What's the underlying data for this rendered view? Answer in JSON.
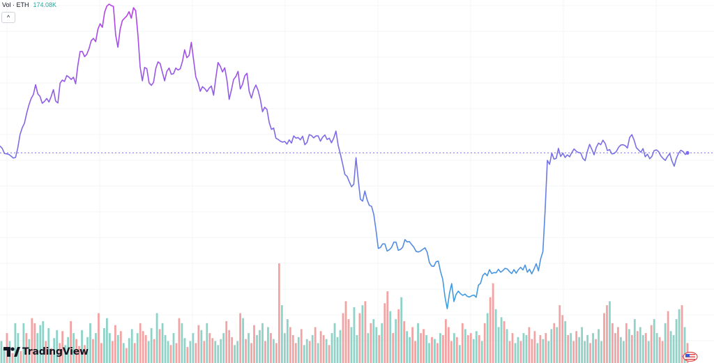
{
  "legend": {
    "label": "Vol · ETH",
    "value": "174.08K",
    "value_color": "#26a69a"
  },
  "collapse_button": {
    "icon": "chevron-up-icon",
    "glyph": "⌃"
  },
  "logo": {
    "text": "TradingView",
    "icon": "tradingview-logo-icon"
  },
  "flag": {
    "icon": "us-flag-icon"
  },
  "colors": {
    "price_line_top": "#b63fe8",
    "price_line_bottom": "#30a6e0",
    "volume_up": "#8fd3c8",
    "volume_down": "#f2a3a3",
    "current_price_line": "#7b6cf0",
    "grid": "#f3f4f6"
  },
  "chart_data": {
    "type": "line",
    "series": [
      {
        "values": [
          0.565,
          0.558,
          0.542,
          0.541,
          0.539,
          0.534,
          0.528,
          0.53,
          0.559,
          0.6,
          0.621,
          0.635,
          0.666,
          0.691,
          0.711,
          0.723,
          0.753,
          0.725,
          0.717,
          0.696,
          0.702,
          0.711,
          0.7,
          0.717,
          0.738,
          0.703,
          0.697,
          0.758,
          0.767,
          0.763,
          0.781,
          0.776,
          0.769,
          0.776,
          0.756,
          0.813,
          0.855,
          0.855,
          0.839,
          0.846,
          0.863,
          0.888,
          0.895,
          0.885,
          0.923,
          0.94,
          0.929,
          0.975,
          0.994,
          1.0,
          0.996,
          0.993,
          0.905,
          0.868,
          0.923,
          0.95,
          0.957,
          0.964,
          0.977,
          0.957,
          0.989,
          0.98,
          0.906,
          0.807,
          0.765,
          0.806,
          0.802,
          0.759,
          0.751,
          0.76,
          0.803,
          0.823,
          0.818,
          0.791,
          0.765,
          0.794,
          0.804,
          0.785,
          0.787,
          0.804,
          0.798,
          0.802,
          0.825,
          0.86,
          0.836,
          0.843,
          0.883,
          0.83,
          0.777,
          0.76,
          0.733,
          0.747,
          0.741,
          0.732,
          0.742,
          0.749,
          0.721,
          0.773,
          0.821,
          0.81,
          0.792,
          0.805,
          0.767,
          0.708,
          0.737,
          0.769,
          0.778,
          0.794,
          0.74,
          0.754,
          0.78,
          0.788,
          0.732,
          0.712,
          0.737,
          0.752,
          0.736,
          0.709,
          0.67,
          0.684,
          0.677,
          0.637,
          0.616,
          0.62,
          0.589,
          0.585,
          0.58,
          0.577,
          0.579,
          0.571,
          0.584,
          0.574,
          0.596,
          0.589,
          0.591,
          0.584,
          0.595,
          0.569,
          0.576,
          0.6,
          0.597,
          0.59,
          0.596,
          0.596,
          0.58,
          0.592,
          0.599,
          0.585,
          0.589,
          0.575,
          0.589,
          0.611,
          0.567,
          0.54,
          0.51,
          0.478,
          0.472,
          0.455,
          0.44,
          0.448,
          0.529,
          0.463,
          0.402,
          0.396,
          0.427,
          0.4,
          0.383,
          0.38,
          0.355,
          0.306,
          0.251,
          0.254,
          0.265,
          0.265,
          0.243,
          0.247,
          0.254,
          0.27,
          0.27,
          0.245,
          0.248,
          0.255,
          0.278,
          0.271,
          0.272,
          0.263,
          0.255,
          0.242,
          0.24,
          0.243,
          0.248,
          0.253,
          0.239,
          0.207,
          0.197,
          0.196,
          0.21,
          0.212,
          0.18,
          0.156,
          0.102,
          0.066,
          0.113,
          0.143,
          0.088,
          0.11,
          0.12,
          0.112,
          0.107,
          0.111,
          0.104,
          0.102,
          0.106,
          0.108,
          0.101,
          0.138,
          0.144,
          0.168,
          0.175,
          0.167,
          0.186,
          0.174,
          0.177,
          0.176,
          0.187,
          0.178,
          0.183,
          0.19,
          0.188,
          0.18,
          0.174,
          0.186,
          0.175,
          0.186,
          0.193,
          0.185,
          0.2,
          0.178,
          0.187,
          0.173,
          0.187,
          0.204,
          0.182,
          0.219,
          0.241,
          0.368,
          0.521,
          0.509,
          0.543,
          0.525,
          0.527,
          0.558,
          0.533,
          0.543,
          0.53,
          0.538,
          0.532,
          0.545,
          0.556,
          0.549,
          0.545,
          0.544,
          0.527,
          0.52,
          0.549,
          0.57,
          0.555,
          0.538,
          0.561,
          0.574,
          0.569,
          0.583,
          0.573,
          0.551,
          0.554,
          0.541,
          0.542,
          0.548,
          0.561,
          0.568,
          0.569,
          0.566,
          0.559,
          0.591,
          0.6,
          0.583,
          0.56,
          0.553,
          0.546,
          0.557,
          0.532,
          0.54,
          0.526,
          0.533,
          0.551,
          0.553,
          0.548,
          0.535,
          0.527,
          0.521,
          0.533,
          0.542,
          0.519,
          0.503,
          0.527,
          0.543,
          0.552,
          0.548,
          0.539,
          0.544
        ],
        "color_top": "#b63fe8",
        "color_bottom": "#30a6e0"
      },
      {
        "type": "bar",
        "up": [
          1,
          1,
          0,
          1,
          0,
          1,
          1,
          0,
          1,
          0,
          1,
          0,
          0,
          1,
          1,
          1,
          0,
          1,
          0,
          1,
          1,
          0,
          0,
          1,
          1,
          0,
          1,
          0,
          0,
          1,
          0,
          1,
          1,
          0,
          1,
          0,
          0,
          1,
          1,
          1,
          0,
          0,
          1,
          0,
          1,
          0,
          1,
          1,
          0,
          1,
          0,
          0,
          0,
          1,
          1,
          0,
          1,
          0,
          1,
          1,
          1,
          0,
          1,
          0,
          0,
          1,
          1,
          0,
          1,
          1,
          0,
          0,
          1,
          0,
          1,
          0,
          0,
          1,
          1,
          1,
          1,
          0,
          0,
          0,
          1,
          1,
          0,
          1,
          0,
          1,
          0,
          0,
          1,
          1,
          1,
          0,
          1,
          0,
          1,
          0,
          0,
          1,
          1,
          1,
          0,
          0,
          0,
          1,
          0,
          1,
          1,
          0,
          1,
          0,
          1,
          0,
          0,
          1,
          0,
          1,
          1,
          1,
          1,
          0,
          0,
          0,
          1,
          1,
          1,
          0,
          1,
          0,
          1,
          0,
          1,
          1,
          0,
          1,
          0,
          0,
          1,
          0,
          1,
          0,
          1,
          0,
          1,
          1,
          0,
          0,
          1,
          0,
          0,
          1,
          1,
          0,
          1,
          0,
          1,
          0,
          0,
          0,
          0,
          1,
          0,
          1,
          0,
          1,
          0,
          0,
          1,
          1,
          0,
          1,
          0,
          1,
          0,
          0,
          1,
          1,
          1,
          0,
          1,
          0,
          0,
          1,
          1,
          0,
          1,
          1,
          0,
          0,
          0,
          1,
          0,
          1,
          0,
          1,
          1,
          0,
          1,
          0,
          0,
          1,
          0,
          1,
          0,
          0,
          1,
          1,
          1,
          1,
          0,
          1,
          0,
          1,
          1,
          0,
          0,
          1,
          0,
          0,
          0,
          1,
          1,
          0,
          1,
          0,
          1,
          0,
          1,
          1,
          0,
          1,
          0,
          1,
          1,
          0,
          0,
          1,
          0,
          1,
          1
        ],
        "values": [
          0.22,
          0.15,
          0.3,
          0.22,
          0.1,
          0.4,
          0.3,
          0.12,
          0.4,
          0.3,
          0.24,
          0.45,
          0.4,
          0.3,
          0.38,
          0.42,
          0.22,
          0.35,
          0.15,
          0.25,
          0.33,
          0.2,
          0.32,
          0.18,
          0.26,
          0.42,
          0.3,
          0.24,
          0.17,
          0.33,
          0.18,
          0.26,
          0.4,
          0.24,
          0.3,
          0.5,
          0.2,
          0.35,
          0.45,
          0.3,
          0.22,
          0.38,
          0.28,
          0.32,
          0.2,
          0.15,
          0.25,
          0.34,
          0.2,
          0.3,
          0.4,
          0.32,
          0.28,
          0.22,
          0.35,
          0.24,
          0.5,
          0.34,
          0.4,
          0.28,
          0.22,
          0.18,
          0.3,
          0.2,
          0.45,
          0.4,
          0.25,
          0.16,
          0.22,
          0.3,
          0.2,
          0.38,
          0.33,
          0.22,
          0.4,
          0.3,
          0.25,
          0.22,
          0.18,
          0.24,
          0.3,
          0.42,
          0.33,
          0.26,
          0.18,
          0.22,
          0.5,
          0.45,
          0.24,
          0.3,
          0.2,
          0.38,
          0.28,
          0.33,
          0.4,
          0.22,
          0.36,
          0.3,
          0.24,
          0.2,
          1.0,
          0.58,
          0.3,
          0.44,
          0.36,
          0.28,
          0.2,
          0.26,
          0.34,
          0.18,
          0.24,
          0.22,
          0.28,
          0.36,
          0.2,
          0.32,
          0.28,
          0.24,
          0.18,
          0.3,
          0.4,
          0.26,
          0.33,
          0.5,
          0.62,
          0.44,
          0.36,
          0.56,
          0.28,
          0.5,
          0.58,
          0.62,
          0.3,
          0.4,
          0.44,
          0.36,
          0.28,
          0.4,
          0.6,
          0.72,
          0.52,
          0.3,
          0.44,
          0.54,
          0.66,
          0.42,
          0.32,
          0.26,
          0.36,
          0.22,
          0.4,
          0.3,
          0.34,
          0.28,
          0.2,
          0.26,
          0.24,
          0.2,
          0.3,
          0.28,
          0.44,
          0.36,
          0.22,
          0.3,
          0.26,
          0.18,
          0.4,
          0.34,
          0.28,
          0.3,
          0.24,
          0.32,
          0.28,
          0.22,
          0.4,
          0.5,
          0.66,
          0.8,
          0.54,
          0.36,
          0.46,
          0.42,
          0.34,
          0.22,
          0.3,
          0.2,
          0.26,
          0.22,
          0.3,
          0.28,
          0.36,
          0.24,
          0.32,
          0.2,
          0.28,
          0.24,
          0.3,
          0.22,
          0.34,
          0.4,
          0.36,
          0.58,
          0.48,
          0.42,
          0.28,
          0.3,
          0.22,
          0.32,
          0.26,
          0.36,
          0.22,
          0.28,
          0.2,
          0.3,
          0.24,
          0.34,
          0.22,
          0.5,
          0.58,
          0.62,
          0.4,
          0.3,
          0.36,
          0.26,
          0.22,
          0.4,
          0.34,
          0.28,
          0.44,
          0.32,
          0.36,
          0.28,
          0.3,
          0.22,
          0.38,
          0.44,
          0.3,
          0.26,
          0.22,
          0.4,
          0.52,
          0.32,
          0.28,
          0.44,
          0.54,
          0.58,
          0.36,
          0.2
        ]
      }
    ]
  }
}
